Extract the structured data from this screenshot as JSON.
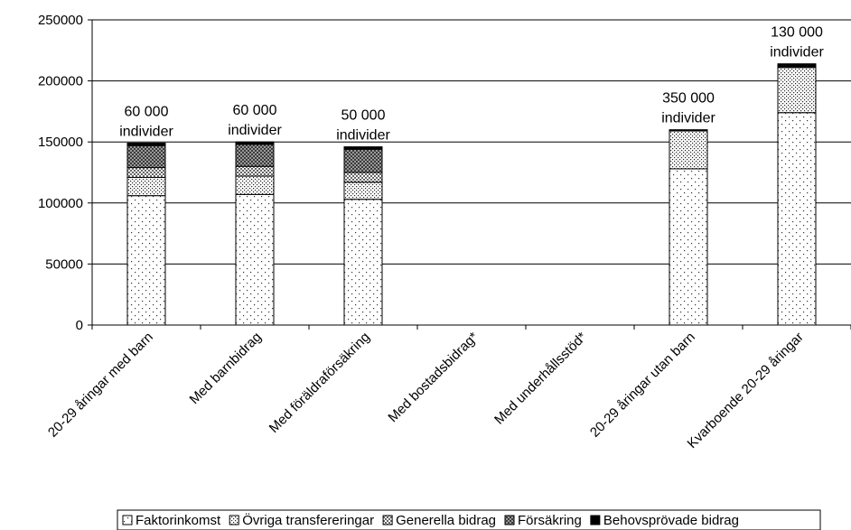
{
  "chart_data": {
    "type": "bar",
    "stacked": true,
    "categories": [
      "20-29 åringar med barn",
      "Med barnbidrag",
      "Med föräldraförsäkring",
      "Med bostadsbidrag*",
      "Med underhållsstöd*",
      "20-29 åringar utan barn",
      "Kvarboende 20-29 åringar"
    ],
    "series": [
      {
        "name": "Faktorinkomst",
        "pattern": "dots-sparse",
        "values": [
          106000,
          107000,
          103000,
          0,
          0,
          128000,
          174000
        ]
      },
      {
        "name": "Övriga transfereringar",
        "pattern": "dots-dense",
        "values": [
          15000,
          15000,
          14000,
          0,
          0,
          31000,
          37000
        ]
      },
      {
        "name": "Generella bidrag",
        "pattern": "checker",
        "values": [
          8000,
          8000,
          8000,
          0,
          0,
          0,
          0
        ]
      },
      {
        "name": "Försäkring",
        "pattern": "dark-checker",
        "values": [
          18000,
          18000,
          19000,
          0,
          0,
          0,
          0
        ]
      },
      {
        "name": "Behovsprövade bidrag",
        "pattern": "solid-black",
        "values": [
          2000,
          2000,
          2000,
          0,
          0,
          1000,
          3000
        ]
      }
    ],
    "annotations": [
      {
        "category_index": 0,
        "lines": [
          "60 000",
          "individer"
        ]
      },
      {
        "category_index": 1,
        "lines": [
          "60 000",
          "individer"
        ]
      },
      {
        "category_index": 2,
        "lines": [
          "50 000",
          "individer"
        ]
      },
      {
        "category_index": 5,
        "lines": [
          "350 000",
          "individer"
        ]
      },
      {
        "category_index": 6,
        "lines": [
          "130 000",
          "individer"
        ]
      }
    ],
    "y_ticks": [
      "0",
      "50000",
      "100000",
      "150000",
      "200000",
      "250000"
    ],
    "ylim": [
      0,
      250000
    ],
    "grid": true,
    "legend_position": "bottom"
  }
}
